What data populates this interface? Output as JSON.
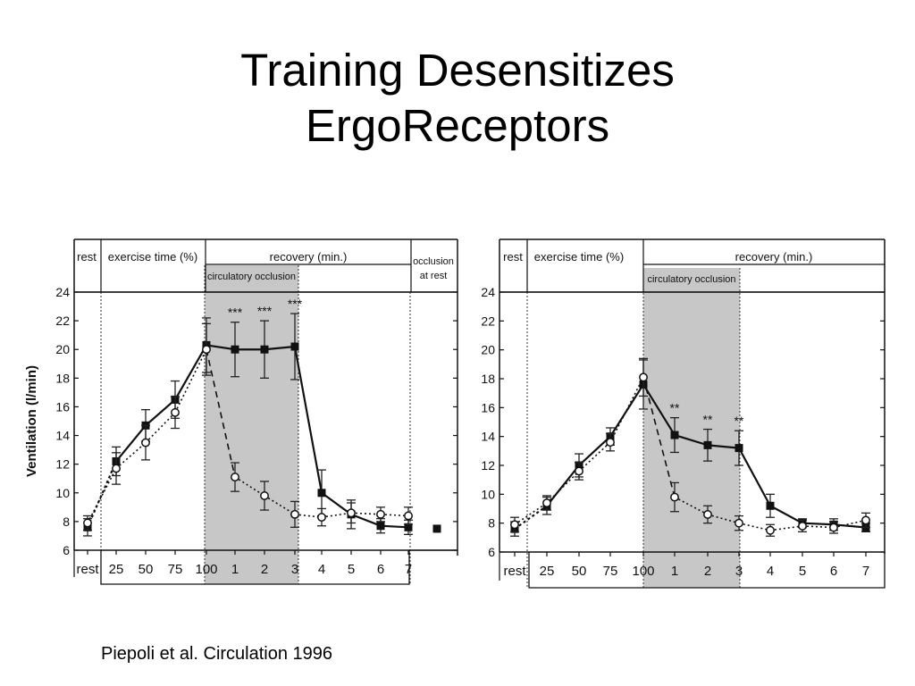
{
  "slide": {
    "title_line1": "Training Desensitizes",
    "title_line2": "ErgoReceptors",
    "citation": "Piepoli et al. Circulation 1996"
  },
  "chart_data": [
    {
      "type": "line",
      "ylabel": "Ventilation (l/min)",
      "ylim": [
        6,
        24
      ],
      "y_ticks": [
        6,
        8,
        10,
        12,
        14,
        16,
        18,
        20,
        22,
        24
      ],
      "categories": [
        "rest",
        "25",
        "50",
        "75",
        "100",
        "1",
        "2",
        "3",
        "4",
        "5",
        "6",
        "7"
      ],
      "extra_category": "occlusion at rest",
      "header_labels": [
        "rest",
        "exercise time (%)",
        "recovery (min.)",
        "occlusion at rest"
      ],
      "shaded_label": "circulatory occlusion",
      "shaded_range": [
        "100",
        "3"
      ],
      "significance": [
        {
          "category": "1",
          "label": "***"
        },
        {
          "category": "2",
          "label": "***"
        },
        {
          "category": "3",
          "label": "***"
        }
      ],
      "series": [
        {
          "style": "filled-square-solid",
          "values": [
            7.6,
            12.2,
            14.7,
            16.5,
            20.3,
            20.0,
            20.0,
            20.2,
            10.0,
            8.5,
            7.7,
            7.6
          ],
          "errors": [
            0.6,
            1.0,
            1.1,
            1.3,
            1.9,
            1.9,
            2.0,
            2.3,
            1.6,
            1.0,
            0.5,
            0.5
          ],
          "extra_value": 7.5
        },
        {
          "style": "open-circle",
          "values": [
            7.9,
            11.7,
            13.5,
            15.6,
            20.0,
            11.1,
            9.8,
            8.5,
            8.3,
            8.6,
            8.5,
            8.4
          ],
          "errors": [
            0.5,
            1.1,
            1.2,
            1.1,
            1.8,
            1.0,
            1.0,
            0.9,
            0.6,
            0.7,
            0.5,
            0.6
          ]
        }
      ]
    },
    {
      "type": "line",
      "ylim": [
        6,
        24
      ],
      "y_ticks": [
        6,
        8,
        10,
        12,
        14,
        16,
        18,
        20,
        22,
        24
      ],
      "categories": [
        "rest",
        "25",
        "50",
        "75",
        "100",
        "1",
        "2",
        "3",
        "4",
        "5",
        "6",
        "7"
      ],
      "header_labels": [
        "rest",
        "exercise time (%)",
        "recovery (min.)"
      ],
      "shaded_label": "circulatory occlusion",
      "shaded_range": [
        "100",
        "3"
      ],
      "significance": [
        {
          "category": "1",
          "label": "**"
        },
        {
          "category": "2",
          "label": "**"
        },
        {
          "category": "3",
          "label": "**"
        }
      ],
      "series": [
        {
          "style": "filled-square-solid",
          "values": [
            7.6,
            9.2,
            12.0,
            14.0,
            17.6,
            14.1,
            13.4,
            13.2,
            9.2,
            8.0,
            7.9,
            7.7
          ],
          "errors": [
            0.5,
            0.6,
            0.8,
            0.6,
            1.7,
            1.2,
            1.1,
            1.2,
            0.8,
            0.3,
            0.4,
            0.3
          ]
        },
        {
          "style": "open-circle",
          "values": [
            7.9,
            9.4,
            11.6,
            13.6,
            18.1,
            9.8,
            8.6,
            8.0,
            7.5,
            7.8,
            7.7,
            8.2
          ],
          "errors": [
            0.5,
            0.5,
            0.6,
            0.6,
            1.3,
            1.0,
            0.6,
            0.5,
            0.4,
            0.4,
            0.4,
            0.5
          ]
        }
      ]
    }
  ]
}
